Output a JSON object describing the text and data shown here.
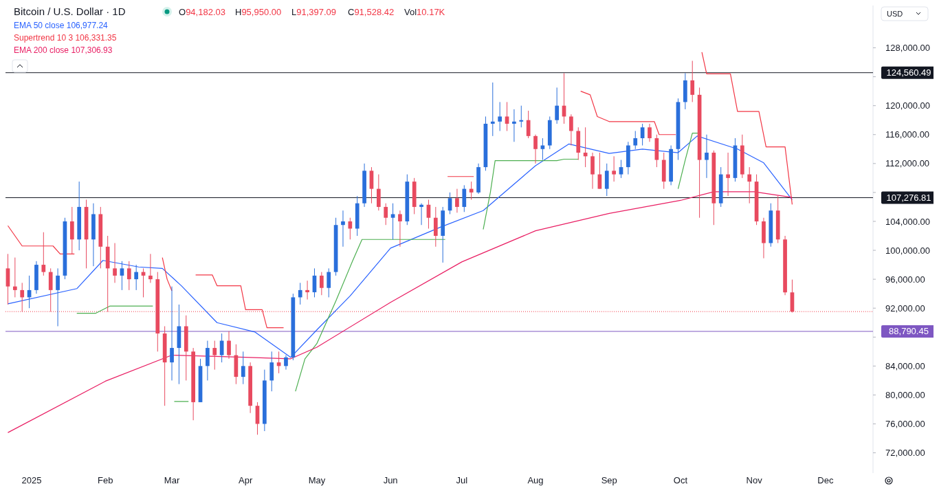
{
  "chart_data": {
    "type": "candlestick",
    "title": "Bitcoin / U.S. Dollar · 1D",
    "annotations": [
      "O94,182.03",
      "H95,950.00",
      "L91,397.09",
      "C91,528.42",
      "Vol10.17K",
      "USD"
    ],
    "legend": "top left",
    "xlim": [
      "2024-12-21",
      "2025-12-21"
    ],
    "xticks": [
      {
        "value": "2025-01-01",
        "label": "2025"
      },
      {
        "value": "2025-02-01",
        "label": "Feb"
      },
      {
        "value": "2025-03-01",
        "label": "Mar"
      },
      {
        "value": "2025-04-01",
        "label": "Apr"
      },
      {
        "value": "2025-05-01",
        "label": "May"
      },
      {
        "value": "2025-06-01",
        "label": "Jun"
      },
      {
        "value": "2025-07-01",
        "label": "Jul"
      },
      {
        "value": "2025-08-01",
        "label": "Aug"
      },
      {
        "value": "2025-09-01",
        "label": "Sep"
      },
      {
        "value": "2025-10-01",
        "label": "Oct"
      },
      {
        "value": "2025-11-01",
        "label": "Nov"
      },
      {
        "value": "2025-12-01",
        "label": "Dec"
      }
    ],
    "ylim": [
      69200,
      133850
    ],
    "yticks": [
      {
        "value": 72000,
        "label": "72,000.00"
      },
      {
        "value": 76000,
        "label": "76,000.00"
      },
      {
        "value": 80000,
        "label": "80,000.00"
      },
      {
        "value": 84000,
        "label": "84,000.00"
      },
      {
        "value": 88000,
        "label": null
      },
      {
        "value": 92000,
        "label": "92,000.00"
      },
      {
        "value": 96000,
        "label": "96,000.00"
      },
      {
        "value": 100000,
        "label": "100,000.00"
      },
      {
        "value": 104000,
        "label": "104,000.00"
      },
      {
        "value": 108000,
        "label": null
      },
      {
        "value": 112000,
        "label": "112,000.00"
      },
      {
        "value": 116000,
        "label": "116,000.00"
      },
      {
        "value": 120000,
        "label": "120,000.00"
      },
      {
        "value": 124000,
        "label": null
      },
      {
        "value": 128000,
        "label": "128,000.00"
      }
    ],
    "ref_lines": [
      {
        "axis": "y",
        "value": 124560.49,
        "label": "124,560.49",
        "color": "#131722"
      },
      {
        "axis": "y",
        "value": 107276.81,
        "label": "107,276.81",
        "color": "#131722"
      },
      {
        "axis": "y",
        "value": 88790.45,
        "label": "88,790.45",
        "color": "#7e57c2"
      },
      {
        "axis": "y",
        "value": 91528.42,
        "color": "#f23645",
        "line_style": "dotted"
      }
    ],
    "series": [
      {
        "type": "line",
        "name": "EMA 50 close 106,977.24",
        "color": "#2962ff",
        "x": [
          "2024-12-22",
          "2025-01-20",
          "2025-01-31",
          "2025-02-15",
          "2025-02-25",
          "2025-03-05",
          "2025-03-20",
          "2025-04-05",
          "2025-04-20",
          "2025-05-01",
          "2025-05-15",
          "2025-06-01",
          "2025-06-22",
          "2025-07-10",
          "2025-08-01",
          "2025-08-15",
          "2025-09-01",
          "2025-09-15",
          "2025-09-30",
          "2025-10-08",
          "2025-10-25",
          "2025-11-05",
          "2025-11-17"
        ],
        "values": [
          92600,
          94700,
          98600,
          97700,
          97500,
          95100,
          90000,
          88700,
          85200,
          89000,
          93700,
          100300,
          103200,
          105500,
          111700,
          114700,
          113400,
          114000,
          113500,
          115800,
          114000,
          112100,
          106977.24
        ]
      },
      {
        "type": "line",
        "name": "Supertrend 10 3 106,331.35",
        "color": "#f23645",
        "x": [
          "2024-12-22",
          "2024-12-28",
          "2025-01-10",
          "2025-01-13",
          "2025-01-19",
          "2025-01-20",
          "2025-02-25",
          "2025-02-27",
          "2025-03-01",
          "2025-03-02",
          "2025-03-11",
          "2025-03-18",
          "2025-03-20",
          "2025-03-30",
          "2025-04-01",
          "2025-04-08",
          "2025-04-10",
          "2025-04-17",
          "2025-04-22",
          "2025-06-25",
          "2025-07-06",
          "2025-07-10",
          "2025-08-20",
          "2025-08-24",
          "2025-08-27",
          "2025-09-01",
          "2025-09-20",
          "2025-09-22",
          "2025-09-29",
          "2025-09-30",
          "2025-10-10",
          "2025-10-12",
          "2025-10-22",
          "2025-10-25",
          "2025-11-03",
          "2025-11-06",
          "2025-11-14",
          "2025-11-17"
        ],
        "values": [
          103400,
          100600,
          100600,
          99500,
          99500,
          null,
          99000,
          96000,
          94400,
          null,
          96600,
          96600,
          95100,
          95100,
          91800,
          91800,
          89300,
          89300,
          null,
          110200,
          110200,
          null,
          122000,
          121500,
          118500,
          117800,
          117800,
          116000,
          116000,
          null,
          127400,
          124400,
          124400,
          119200,
          119200,
          114300,
          114300,
          106331.35
        ]
      },
      {
        "type": "line",
        "color": "#4caf50",
        "x": [
          "2025-01-20",
          "2025-01-28",
          "2025-02-03",
          "2025-02-21",
          "2025-02-25",
          "2025-03-02",
          "2025-03-08",
          "2025-03-11",
          "2025-04-22",
          "2025-04-26",
          "2025-05-01",
          "2025-05-09",
          "2025-05-16",
          "2025-05-20",
          "2025-06-24",
          "2025-06-25",
          "2025-07-10",
          "2025-07-13",
          "2025-07-15",
          "2025-08-10",
          "2025-08-13",
          "2025-08-19",
          "2025-08-20",
          "2025-09-30",
          "2025-10-03",
          "2025-10-06",
          "2025-10-09"
        ],
        "values": [
          91300,
          91300,
          92300,
          92300,
          null,
          79100,
          79100,
          null,
          80500,
          85000,
          87100,
          93000,
          98500,
          101500,
          101500,
          null,
          102900,
          108000,
          112400,
          112400,
          112600,
          112600,
          null,
          108500,
          112500,
          116200,
          116200
        ]
      },
      {
        "type": "line",
        "name": "EMA 200 close 107,306.93",
        "color": "#e91e63",
        "x": [
          "2024-12-22",
          "2025-02-01",
          "2025-03-01",
          "2025-04-01",
          "2025-04-20",
          "2025-05-01",
          "2025-06-01",
          "2025-07-01",
          "2025-08-01",
          "2025-09-01",
          "2025-10-01",
          "2025-10-15",
          "2025-11-01",
          "2025-11-17"
        ],
        "values": [
          74800,
          81900,
          85500,
          85200,
          85000,
          86600,
          92800,
          98400,
          102700,
          105100,
          106900,
          108100,
          108100,
          107306.93
        ]
      },
      {
        "x": [
          "2024-12-22",
          "2024-12-25",
          "2024-12-28",
          "2024-12-31",
          "2025-01-03",
          "2025-01-06",
          "2025-01-09",
          "2025-01-12",
          "2025-01-15",
          "2025-01-18",
          "2025-01-21",
          "2025-01-24",
          "2025-01-27",
          "2025-01-30",
          "2025-02-02",
          "2025-02-05",
          "2025-02-08",
          "2025-02-11",
          "2025-02-14",
          "2025-02-17",
          "2025-02-20",
          "2025-02-23",
          "2025-02-26",
          "2025-03-01",
          "2025-03-04",
          "2025-03-07",
          "2025-03-10",
          "2025-03-13",
          "2025-03-16",
          "2025-03-19",
          "2025-03-22",
          "2025-03-25",
          "2025-03-28",
          "2025-03-31",
          "2025-04-03",
          "2025-04-06",
          "2025-04-09",
          "2025-04-12",
          "2025-04-15",
          "2025-04-18",
          "2025-04-21",
          "2025-04-24",
          "2025-04-27",
          "2025-04-30",
          "2025-05-03",
          "2025-05-06",
          "2025-05-09",
          "2025-05-12",
          "2025-05-15",
          "2025-05-18",
          "2025-05-21",
          "2025-05-24",
          "2025-05-27",
          "2025-05-30",
          "2025-06-02",
          "2025-06-05",
          "2025-06-08",
          "2025-06-11",
          "2025-06-14",
          "2025-06-17",
          "2025-06-20",
          "2025-06-23",
          "2025-06-26",
          "2025-06-29",
          "2025-07-02",
          "2025-07-05",
          "2025-07-08",
          "2025-07-11",
          "2025-07-14",
          "2025-07-17",
          "2025-07-20",
          "2025-07-23",
          "2025-07-26",
          "2025-07-29",
          "2025-08-01",
          "2025-08-04",
          "2025-08-07",
          "2025-08-10",
          "2025-08-13",
          "2025-08-16",
          "2025-08-19",
          "2025-08-22",
          "2025-08-25",
          "2025-08-28",
          "2025-08-31",
          "2025-09-03",
          "2025-09-06",
          "2025-09-09",
          "2025-09-12",
          "2025-09-15",
          "2025-09-18",
          "2025-09-21",
          "2025-09-24",
          "2025-09-27",
          "2025-09-30",
          "2025-10-03",
          "2025-10-06",
          "2025-10-09",
          "2025-10-12",
          "2025-10-15",
          "2025-10-18",
          "2025-10-21",
          "2025-10-24",
          "2025-10-27",
          "2025-10-30",
          "2025-11-02",
          "2025-11-05",
          "2025-11-08",
          "2025-11-11",
          "2025-11-14",
          "2025-11-17"
        ],
        "ohlc": [
          [
            97500,
            99500,
            92500,
            95000
          ],
          [
            95000,
            99000,
            93500,
            94500
          ],
          [
            94500,
            95500,
            91500,
            93500
          ],
          [
            93500,
            96500,
            92000,
            94500
          ],
          [
            94500,
            98500,
            94000,
            98000
          ],
          [
            98000,
            102500,
            96500,
            97000
          ],
          [
            97000,
            97500,
            91500,
            94500
          ],
          [
            94500,
            97500,
            89500,
            96500
          ],
          [
            96500,
            104500,
            96000,
            104000
          ],
          [
            104000,
            106000,
            99500,
            101500
          ],
          [
            101500,
            109500,
            100000,
            106000
          ],
          [
            106000,
            107000,
            97500,
            101500
          ],
          [
            101500,
            106500,
            97800,
            105000
          ],
          [
            105000,
            106000,
            97500,
            100500
          ],
          [
            100500,
            102000,
            91500,
            97500
          ],
          [
            97500,
            101000,
            95500,
            96500
          ],
          [
            96500,
            98500,
            94500,
            97500
          ],
          [
            97500,
            98500,
            94500,
            96000
          ],
          [
            96000,
            98000,
            94500,
            97000
          ],
          [
            97000,
            97500,
            93500,
            96500
          ],
          [
            96500,
            99500,
            95500,
            96000
          ],
          [
            96000,
            97000,
            86000,
            88500
          ],
          [
            88500,
            89500,
            78500,
            84500
          ],
          [
            84500,
            95000,
            82000,
            86500
          ],
          [
            86500,
            92500,
            81500,
            89500
          ],
          [
            89500,
            91000,
            82000,
            86000
          ],
          [
            86000,
            86500,
            76500,
            79000
          ],
          [
            79000,
            85000,
            79000,
            84000
          ],
          [
            84000,
            87500,
            82000,
            86500
          ],
          [
            86500,
            87500,
            83500,
            85500
          ],
          [
            85500,
            88500,
            84500,
            87500
          ],
          [
            87500,
            88800,
            85000,
            85500
          ],
          [
            85500,
            87000,
            81500,
            82500
          ],
          [
            82500,
            86000,
            81500,
            84000
          ],
          [
            84000,
            84500,
            77500,
            78500
          ],
          [
            78500,
            79000,
            74500,
            76000
          ],
          [
            76000,
            83500,
            75000,
            82000
          ],
          [
            82000,
            86000,
            80500,
            84500
          ],
          [
            84500,
            86000,
            83000,
            84000
          ],
          [
            84000,
            85500,
            83500,
            85200
          ],
          [
            85200,
            94000,
            84800,
            93500
          ],
          [
            93500,
            95500,
            92500,
            94500
          ],
          [
            94500,
            95800,
            93200,
            94200
          ],
          [
            94200,
            97500,
            93500,
            96500
          ],
          [
            96500,
            97000,
            93800,
            94800
          ],
          [
            94800,
            97500,
            93500,
            97000
          ],
          [
            97000,
            104500,
            96500,
            103500
          ],
          [
            103500,
            105500,
            100500,
            104000
          ],
          [
            104000,
            104500,
            101500,
            103000
          ],
          [
            103000,
            107500,
            102000,
            106500
          ],
          [
            106500,
            112000,
            106000,
            111000
          ],
          [
            111000,
            111500,
            106500,
            108500
          ],
          [
            108500,
            110500,
            105500,
            106000
          ],
          [
            106000,
            106500,
            103500,
            104500
          ],
          [
            104500,
            106500,
            101500,
            105000
          ],
          [
            105000,
            105500,
            100500,
            104000
          ],
          [
            104000,
            110500,
            103500,
            109500
          ],
          [
            109500,
            110000,
            105000,
            106000
          ],
          [
            106000,
            106500,
            103500,
            106300
          ],
          [
            106300,
            107000,
            103000,
            104500
          ],
          [
            104500,
            106000,
            100500,
            102000
          ],
          [
            102000,
            106000,
            98300,
            105500
          ],
          [
            105500,
            108000,
            105000,
            107200
          ],
          [
            107200,
            108500,
            105200,
            106000
          ],
          [
            106000,
            109000,
            105300,
            108500
          ],
          [
            108500,
            109500,
            107000,
            108000
          ],
          [
            108000,
            112000,
            107800,
            111500
          ],
          [
            111500,
            118500,
            111000,
            117500
          ],
          [
            117500,
            123200,
            115800,
            117800
          ],
          [
            117800,
            120500,
            116500,
            118500
          ],
          [
            118500,
            120500,
            116500,
            117500
          ],
          [
            117500,
            119500,
            115000,
            117800
          ],
          [
            117800,
            120000,
            117000,
            118000
          ],
          [
            118000,
            119300,
            115500,
            115800
          ],
          [
            115800,
            116000,
            112000,
            114000
          ],
          [
            114000,
            115500,
            112500,
            114500
          ],
          [
            114500,
            118500,
            114000,
            118000
          ],
          [
            118000,
            122500,
            117500,
            120000
          ],
          [
            120000,
            124500,
            117500,
            118500
          ],
          [
            118500,
            118800,
            114500,
            116500
          ],
          [
            116500,
            117000,
            112500,
            113500
          ],
          [
            113500,
            117000,
            111500,
            113000
          ],
          [
            113000,
            113500,
            108500,
            110500
          ],
          [
            110500,
            113500,
            108500,
            108500
          ],
          [
            108500,
            112000,
            107500,
            111000
          ],
          [
            111000,
            113000,
            109500,
            110500
          ],
          [
            110500,
            112500,
            110000,
            111500
          ],
          [
            111500,
            115000,
            110500,
            114500
          ],
          [
            114500,
            116500,
            114000,
            115500
          ],
          [
            115500,
            117500,
            114500,
            117000
          ],
          [
            117000,
            117500,
            115000,
            115500
          ],
          [
            115500,
            116000,
            111500,
            112500
          ],
          [
            112500,
            113500,
            108500,
            109500
          ],
          [
            109500,
            114500,
            109000,
            114000
          ],
          [
            114000,
            121000,
            112500,
            120500
          ],
          [
            120500,
            124500,
            119500,
            123500
          ],
          [
            123500,
            126200,
            120500,
            121500
          ],
          [
            121500,
            122500,
            104500,
            112500
          ],
          [
            112500,
            116000,
            110000,
            113500
          ],
          [
            113500,
            113800,
            103500,
            106500
          ],
          [
            106500,
            111500,
            106000,
            110500
          ],
          [
            110500,
            113500,
            107500,
            110000
          ],
          [
            110000,
            115500,
            109500,
            114500
          ],
          [
            114500,
            116000,
            110000,
            110500
          ],
          [
            110500,
            111500,
            106500,
            109500
          ],
          [
            109500,
            110500,
            103500,
            104000
          ],
          [
            104000,
            104500,
            98900,
            101000
          ],
          [
            101000,
            106500,
            100500,
            105500
          ],
          [
            105500,
            107500,
            101000,
            101500
          ],
          [
            101500,
            102000,
            93800,
            94182.03
          ],
          [
            94182.03,
            95950.0,
            91397.09,
            91528.42
          ]
        ],
        "colors": [
          "#e84a5f",
          "#e84a5f",
          "#e84a5f",
          "#2a6fdb",
          "#2a6fdb",
          "#e84a5f",
          "#e84a5f",
          "#2a6fdb",
          "#2a6fdb",
          "#e84a5f",
          "#2a6fdb",
          "#e84a5f",
          "#2a6fdb",
          "#e84a5f",
          "#e84a5f",
          "#e84a5f",
          "#2a6fdb",
          "#e84a5f",
          "#2a6fdb",
          "#e84a5f",
          "#e84a5f",
          "#e84a5f",
          "#e84a5f",
          "#2a6fdb",
          "#2a6fdb",
          "#e84a5f",
          "#e84a5f",
          "#2a6fdb",
          "#2a6fdb",
          "#e84a5f",
          "#2a6fdb",
          "#e84a5f",
          "#e84a5f",
          "#2a6fdb",
          "#e84a5f",
          "#e84a5f",
          "#2a6fdb",
          "#2a6fdb",
          "#e84a5f",
          "#2a6fdb",
          "#2a6fdb",
          "#2a6fdb",
          "#e84a5f",
          "#2a6fdb",
          "#e84a5f",
          "#2a6fdb",
          "#2a6fdb",
          "#2a6fdb",
          "#e84a5f",
          "#2a6fdb",
          "#2a6fdb",
          "#e84a5f",
          "#e84a5f",
          "#e84a5f",
          "#2a6fdb",
          "#e84a5f",
          "#2a6fdb",
          "#e84a5f",
          "#2a6fdb",
          "#e84a5f",
          "#e84a5f",
          "#2a6fdb",
          "#2a6fdb",
          "#e84a5f",
          "#2a6fdb",
          "#e84a5f",
          "#2a6fdb",
          "#2a6fdb",
          "#2a6fdb",
          "#2a6fdb",
          "#e84a5f",
          "#2a6fdb",
          "#2a6fdb",
          "#e84a5f",
          "#e84a5f",
          "#2a6fdb",
          "#2a6fdb",
          "#2a6fdb",
          "#e84a5f",
          "#e84a5f",
          "#e84a5f",
          "#e84a5f",
          "#e84a5f",
          "#e84a5f",
          "#2a6fdb",
          "#e84a5f",
          "#2a6fdb",
          "#2a6fdb",
          "#2a6fdb",
          "#2a6fdb",
          "#e84a5f",
          "#e84a5f",
          "#e84a5f",
          "#2a6fdb",
          "#2a6fdb",
          "#2a6fdb",
          "#e84a5f",
          "#e84a5f",
          "#2a6fdb",
          "#e84a5f",
          "#2a6fdb",
          "#e84a5f",
          "#2a6fdb",
          "#e84a5f",
          "#e84a5f",
          "#e84a5f",
          "#e84a5f",
          "#2a6fdb",
          "#e84a5f",
          "#e84a5f",
          "#e84a5f"
        ]
      }
    ]
  }
}
